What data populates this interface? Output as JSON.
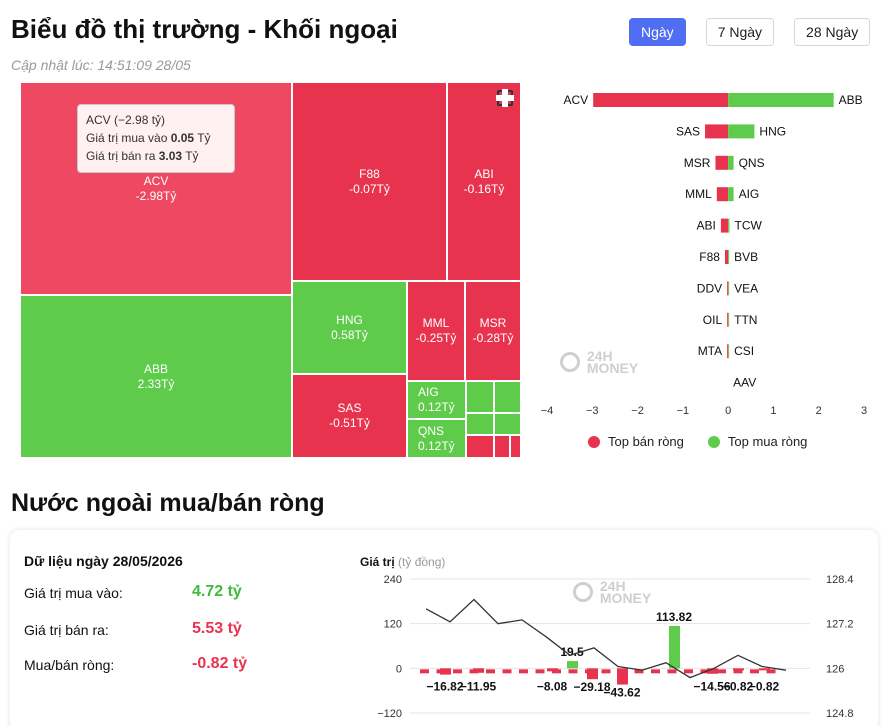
{
  "header": {
    "title": "Biểu đồ thị trường - Khối ngoại",
    "updated": "Cập nhật lúc: 14:51:09 28/05",
    "tabs": [
      "Ngày",
      "7 Ngày",
      "28 Ngày"
    ],
    "active_tab": "Ngày"
  },
  "tooltip": {
    "title": "ACV (−2.98 tỷ)",
    "buy_label": "Giá trị mua vào",
    "buy_value": "0.05",
    "sell_label": "Giá trị bán ra",
    "sell_value": "3.03",
    "unit": "Tỷ"
  },
  "treemap": {
    "tiles": [
      {
        "code": "ACV",
        "value": "-2.98Tỷ",
        "side": "sell"
      },
      {
        "code": "F88",
        "value": "-0.07Tỷ",
        "side": "sell"
      },
      {
        "code": "ABI",
        "value": "-0.16Tỷ",
        "side": "sell"
      },
      {
        "code": "ABB",
        "value": "2.33Tỷ",
        "side": "buy"
      },
      {
        "code": "HNG",
        "value": "0.58Tỷ",
        "side": "buy"
      },
      {
        "code": "MML",
        "value": "-0.25Tỷ",
        "side": "sell"
      },
      {
        "code": "MSR",
        "value": "-0.28Tỷ",
        "side": "sell"
      },
      {
        "code": "SAS",
        "value": "-0.51Tỷ",
        "side": "sell"
      },
      {
        "code": "AIG",
        "value": "0.12Tỷ",
        "side": "buy"
      },
      {
        "code": "QNS",
        "value": "0.12Tỷ",
        "side": "buy"
      }
    ]
  },
  "watermark": {
    "line1": "24H",
    "line2": "MONEY"
  },
  "chart_data": [
    {
      "type": "bar",
      "orientation": "horizontal",
      "xlim": [
        -4,
        3
      ],
      "xticks": [
        "−4",
        "−3",
        "−2",
        "−1",
        "0",
        "1",
        "2",
        "3"
      ],
      "sell_codes": [
        "ACV",
        "SAS",
        "MSR",
        "MML",
        "ABI",
        "F88",
        "DDV",
        "OIL",
        "MTA",
        ""
      ],
      "sell_values": [
        -2.98,
        -0.51,
        -0.28,
        -0.25,
        -0.16,
        -0.07,
        -0.02,
        -0.01,
        -0.005,
        0
      ],
      "buy_codes": [
        "ABB",
        "HNG",
        "QNS",
        "AIG",
        "TCW",
        "BVB",
        "VEA",
        "TTN",
        "CSI",
        "AAV"
      ],
      "buy_values": [
        2.33,
        0.58,
        0.12,
        0.12,
        0.03,
        0.02,
        0.01,
        0.01,
        0.005,
        0
      ],
      "legend": [
        "Top bán ròng",
        "Top mua ròng"
      ],
      "colors": {
        "sell": "#e8334f",
        "buy": "#5fcb4b"
      }
    },
    {
      "type": "bar",
      "ylabel": "Giá trị",
      "ylabel_unit": "(tỷ đồng)",
      "ylim": [
        -120,
        240
      ],
      "yticks": [
        "240",
        "120",
        "0",
        "−120"
      ],
      "right_ticks": [
        "128.4",
        "127.2",
        "126",
        "124.8"
      ],
      "right_lim": [
        124.8,
        128.4
      ],
      "values": [
        -16.82,
        -11.95,
        -8.08,
        19.5,
        -29.18,
        -43.62,
        113.82,
        -14.56,
        -0.82,
        -0.82
      ],
      "value_labels": [
        "−16.82",
        "−11.95",
        "−8.08",
        "19.5",
        "−29.18",
        "−43.62",
        "113.82",
        "−14.56",
        "−0.82",
        "−0.82"
      ],
      "line": [
        127.6,
        127.25,
        127.85,
        127.2,
        127.3,
        126.85,
        126.35,
        126.55,
        126.05,
        125.95,
        126.15,
        125.75,
        126.0,
        126.35,
        126.05,
        125.95
      ]
    }
  ],
  "summary": {
    "heading": "Dữ liệu ngày 28/05/2026",
    "buy_label": "Giá trị mua vào:",
    "buy_value": "4.72 tỷ",
    "sell_label": "Giá trị bán ra:",
    "sell_value": "5.53 tỷ",
    "net_label": "Mua/bán ròng:",
    "net_value": "-0.82 tỷ"
  },
  "section_title": "Nước ngoài mua/bán ròng"
}
